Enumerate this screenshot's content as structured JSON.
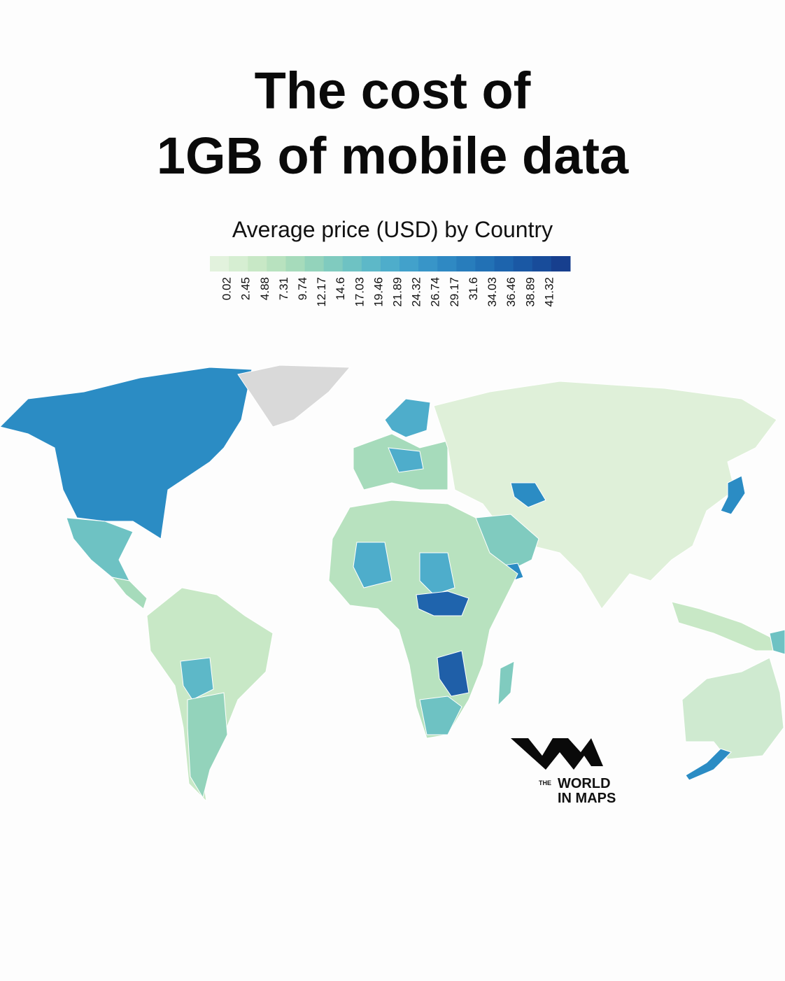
{
  "header": {
    "title_line1": "The cost of",
    "title_line2": "1GB of mobile data",
    "subtitle": "Average price (USD) by Country"
  },
  "legend": {
    "colors": [
      "#e2f2dd",
      "#d6eed2",
      "#c8e8c6",
      "#b8e2bf",
      "#a6dbbb",
      "#93d3bb",
      "#80cbbf",
      "#6ec2c3",
      "#5db8c8",
      "#4eadcb",
      "#42a1cb",
      "#3895c8",
      "#2f89c3",
      "#287dbc",
      "#2271b5",
      "#1d64ad",
      "#1a58a4",
      "#184c9a",
      "#173f8e"
    ],
    "ticks": [
      0.02,
      2.45,
      4.88,
      7.31,
      9.74,
      12.17,
      14.6,
      17.03,
      19.46,
      21.89,
      24.32,
      26.74,
      29.17,
      31.6,
      34.03,
      36.46,
      38.89,
      41.32
    ]
  },
  "logo": {
    "small": "THE",
    "line1": "WORLD",
    "line2": "IN MAPS"
  }
}
